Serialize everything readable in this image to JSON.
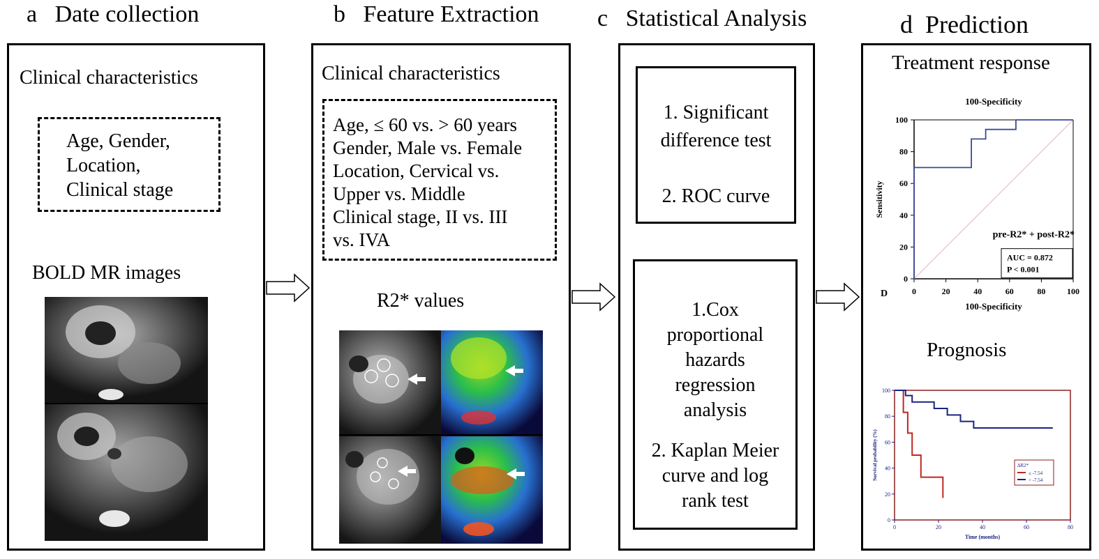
{
  "panels": {
    "a": {
      "letter": "a",
      "title": "Date collection",
      "subtitle": "Clinical characteristics",
      "box_lines": [
        "Age,   Gender,",
        "Location,",
        "Clinical stage"
      ],
      "image_label": "BOLD MR images"
    },
    "b": {
      "letter": "b",
      "title": "Feature Extraction",
      "subtitle": "Clinical characteristics",
      "box_lines": [
        "Age, ≤ 60 vs. > 60 years",
        "Gender, Male vs. Female",
        "Location,  Cervical  vs.",
        "Upper vs. Middle",
        "Clinical  stage,  II  vs.  III",
        "vs. IVA"
      ],
      "image_label": "R2* values"
    },
    "c": {
      "letter": "c",
      "title": "Statistical Analysis",
      "box1_lines": [
        "1. Significant",
        "difference test",
        "",
        "2. ROC curve"
      ],
      "box2_lines": [
        "1.Cox",
        "proportional",
        "hazards",
        "regression",
        "analysis",
        "",
        "2. Kaplan Meier",
        "curve and log",
        "rank test"
      ]
    },
    "d": {
      "letter": "d",
      "title": "Prediction",
      "sub1": "Treatment response",
      "sub2": "Prognosis"
    }
  },
  "chart_data": [
    {
      "type": "line",
      "panel_label": "D",
      "title": "100-Specificity",
      "xlabel": "100-Specificity",
      "ylabel": "Sensitivity",
      "xlim": [
        0,
        100
      ],
      "ylim": [
        0,
        100
      ],
      "xticks": [
        0,
        20,
        40,
        60,
        80,
        100
      ],
      "yticks": [
        0,
        20,
        40,
        60,
        80,
        100
      ],
      "series": [
        {
          "name": "pre-R2* + post-R2*",
          "color": "#3b4a9a",
          "x": [
            0,
            0,
            36,
            36,
            45,
            45,
            64,
            64,
            100
          ],
          "y": [
            0,
            70,
            70,
            88,
            88,
            94,
            94,
            100,
            100
          ]
        }
      ],
      "reference_line": {
        "x": [
          0,
          100
        ],
        "y": [
          0,
          100
        ],
        "color": "#d9b8c8"
      },
      "annotation_lines": [
        "AUC = 0.872",
        "P < 0.001"
      ]
    },
    {
      "type": "line",
      "xlabel": "Time (months)",
      "ylabel": "Survival probability (%)",
      "xlim": [
        0,
        80
      ],
      "ylim": [
        0,
        100
      ],
      "xticks": [
        0,
        20,
        40,
        60,
        80
      ],
      "yticks": [
        0,
        20,
        40,
        60,
        80,
        100
      ],
      "legend_title": "ΔR2*",
      "legend_position": "bottom-right",
      "frame_color": "#8b1e1e",
      "series": [
        {
          "name": "≤ -7.54",
          "color": "#c0261f",
          "x": [
            0,
            4,
            4,
            6,
            6,
            8,
            8,
            12,
            12,
            22,
            22
          ],
          "y": [
            100,
            100,
            83,
            83,
            67,
            67,
            50,
            50,
            33,
            33,
            17
          ]
        },
        {
          "name": "> -7.54",
          "color": "#1a237e",
          "x": [
            0,
            5,
            5,
            8,
            8,
            18,
            18,
            24,
            24,
            30,
            30,
            36,
            36,
            72
          ],
          "y": [
            100,
            100,
            96,
            96,
            91,
            91,
            86,
            86,
            81,
            81,
            76,
            76,
            71,
            71
          ]
        }
      ]
    }
  ]
}
